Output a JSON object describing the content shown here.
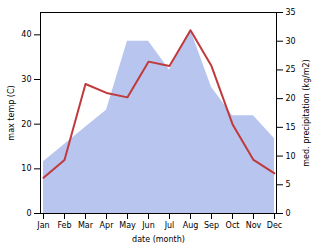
{
  "chart_data": {
    "type": "line",
    "categories": [
      "Jan",
      "Feb",
      "Mar",
      "Apr",
      "May",
      "Jun",
      "Jul",
      "Aug",
      "Sep",
      "Oct",
      "Nov",
      "Dec"
    ],
    "xlabel": "date (month)",
    "ylabel": "max temp (C)",
    "y2label": "med. precipitation (kg/m2)",
    "series": [
      {
        "type": "line",
        "color": "#c0393b",
        "values": [
          8,
          12,
          29,
          27,
          26,
          34,
          33,
          41,
          33,
          20,
          12,
          9
        ]
      },
      {
        "type": "area",
        "axis": "y2",
        "color": "#b8c5ee",
        "values": [
          9,
          12,
          15,
          18,
          30,
          30,
          25,
          32,
          22,
          17,
          17,
          13
        ]
      }
    ],
    "ylim": [
      0,
      45
    ],
    "yticks": [
      0,
      10,
      20,
      30,
      40
    ],
    "y2lim": [
      0,
      35
    ],
    "y2ticks": [
      0,
      5,
      10,
      15,
      20,
      25,
      30,
      35
    ],
    "grid": false
  }
}
